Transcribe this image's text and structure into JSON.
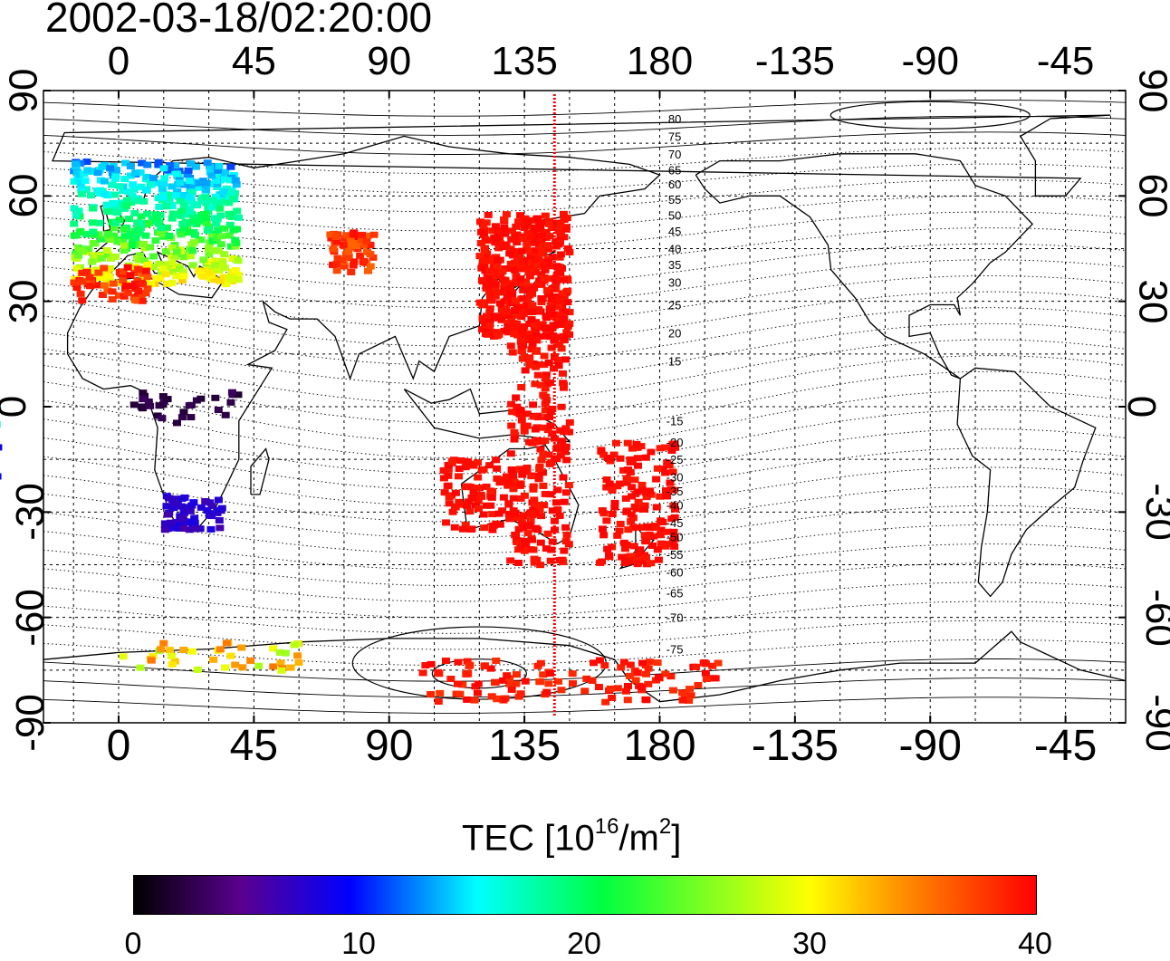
{
  "title": "2002-03-18/02:20:00",
  "x_ticks": [
    "0",
    "45",
    "90",
    "135",
    "180",
    "-135",
    "-90",
    "-45"
  ],
  "y_ticks": [
    "90",
    "60",
    "30",
    "0",
    "-30",
    "-60",
    "-90"
  ],
  "contour_labels_north": [
    "80",
    "75",
    "70",
    "65",
    "60",
    "55",
    "50",
    "45",
    "40",
    "35",
    "30",
    "25",
    "20",
    "15"
  ],
  "contour_labels_south": [
    "-15",
    "-20",
    "-25",
    "-30",
    "-35",
    "-40",
    "-45",
    "-50",
    "-55",
    "-60",
    "-65",
    "-70",
    "-75"
  ],
  "colorbar": {
    "title": "TEC  [10",
    "title_sup1": "16",
    "title_mid": "/m",
    "title_sup2": "2",
    "title_end": "]",
    "ticks": [
      "0",
      "10",
      "20",
      "30",
      "40"
    ],
    "min": 0,
    "max": 40,
    "colors": [
      "#000000",
      "#5a0090",
      "#0000ff",
      "#00ffff",
      "#00ff40",
      "#ffff00",
      "#ff9000",
      "#ff0000"
    ]
  },
  "map": {
    "projection": "equirectangular",
    "lon_range": [
      -25,
      335
    ],
    "lat_range": [
      -90,
      90
    ],
    "sun_meridian_lon": 145,
    "meridian_color": "#ff0000"
  }
}
